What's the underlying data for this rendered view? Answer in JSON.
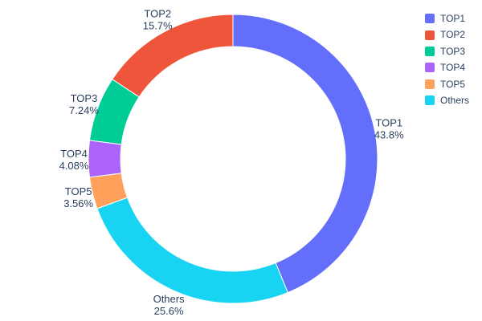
{
  "chart_data": {
    "type": "pie",
    "subtype": "donut",
    "hole": 0.78,
    "labels": [
      "TOP1",
      "TOP2",
      "TOP3",
      "TOP4",
      "TOP5",
      "Others"
    ],
    "values": [
      43.8,
      15.7,
      7.24,
      4.08,
      3.56,
      25.6
    ],
    "percent_labels": [
      "43.8%",
      "15.7%",
      "7.24%",
      "4.08%",
      "3.56%",
      "25.6%"
    ],
    "colors": [
      "#636efa",
      "#ef553b",
      "#00cc96",
      "#ab63fa",
      "#ffa15a",
      "#19d3f3"
    ],
    "order_clockwise_from_top": [
      "TOP1",
      "Others",
      "TOP5",
      "TOP4",
      "TOP3",
      "TOP2"
    ],
    "legend": {
      "position": "top-right",
      "entries": [
        "TOP1",
        "TOP2",
        "TOP3",
        "TOP4",
        "TOP5",
        "Others"
      ]
    },
    "text_color": "#2a3f5f",
    "background_color": "#ffffff",
    "slice_border_color": "#ffffff"
  }
}
